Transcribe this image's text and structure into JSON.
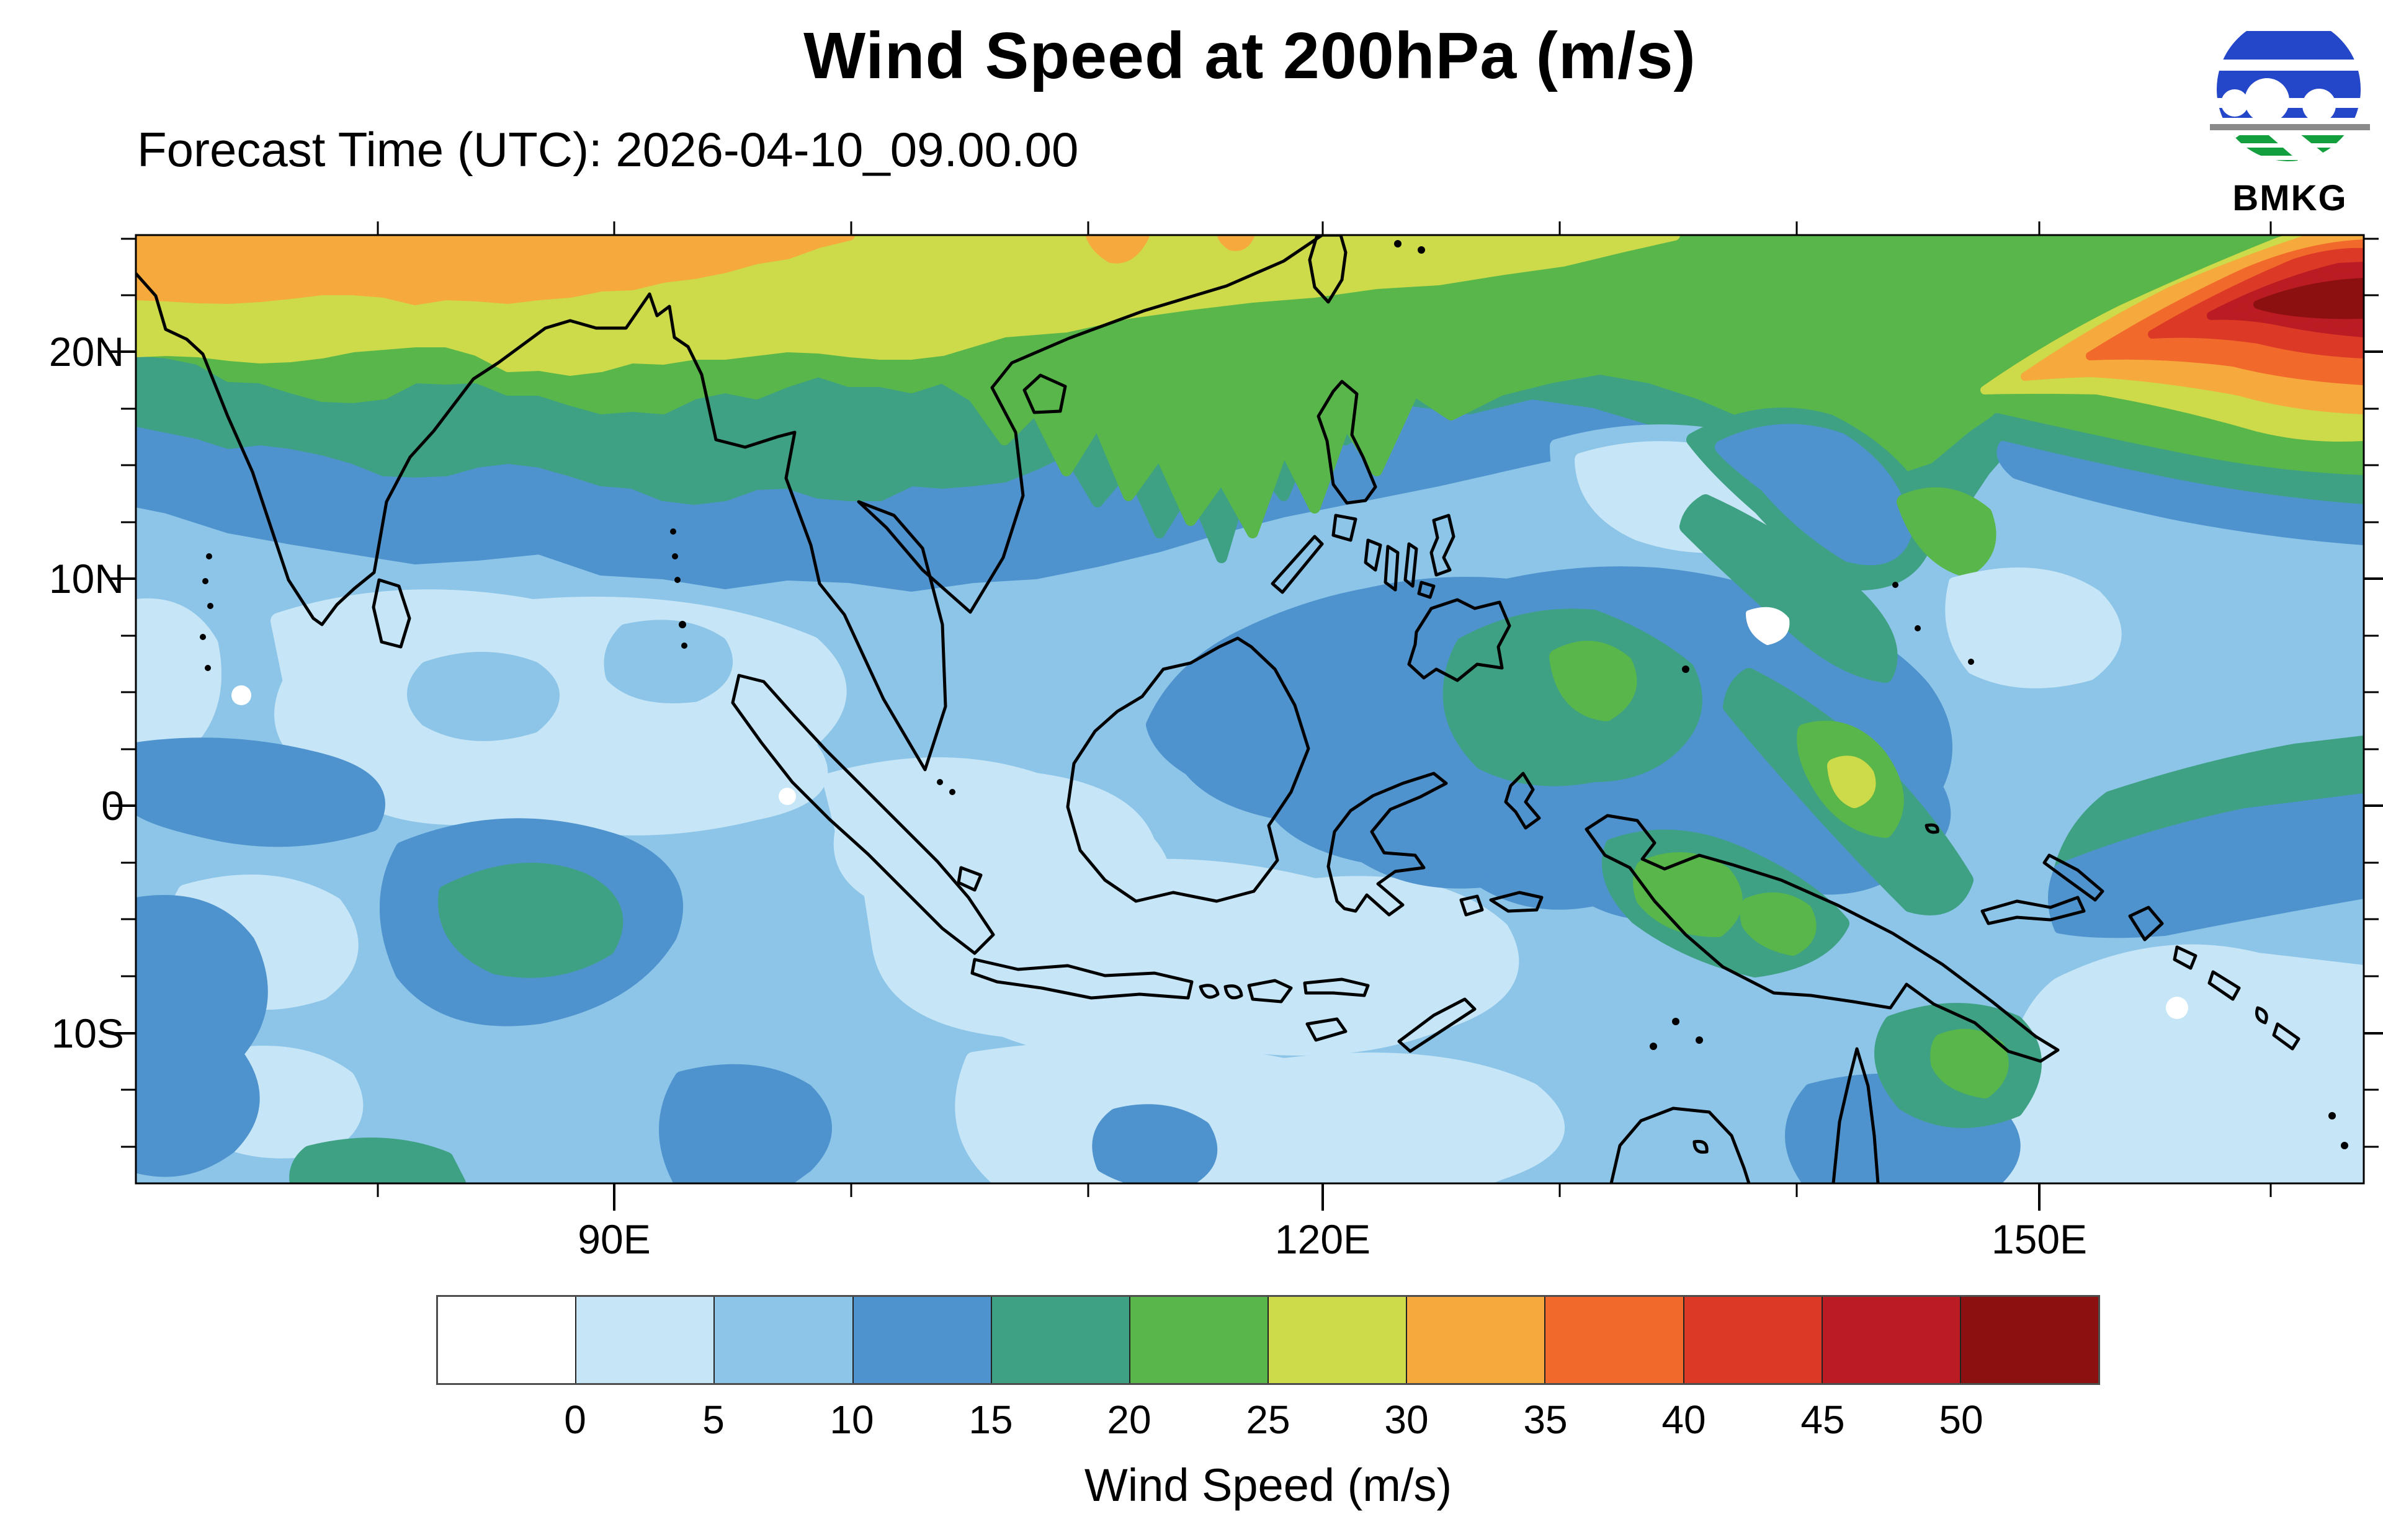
{
  "header": {
    "title": "Wind Speed at 200hPa (m/s)",
    "forecast_time": "Forecast Time (UTC): 2026-04-10_09.00.00"
  },
  "logo": {
    "text": "BMKG",
    "blue": "#2446c8",
    "green": "#149f3f",
    "gray": "#8a8a8a"
  },
  "map": {
    "lat_tick_labels": [
      "20N",
      "10N",
      "0",
      "10S"
    ],
    "lon_tick_labels": [
      "90E",
      "120E",
      "150E"
    ]
  },
  "colorbar": {
    "label": "Wind Speed (m/s)",
    "tick_labels": [
      "0",
      "5",
      "10",
      "15",
      "20",
      "25",
      "30",
      "35",
      "40",
      "45",
      "50"
    ],
    "colors": [
      "#ffffff",
      "#c6e5f6",
      "#8cc5e8",
      "#4e93ce",
      "#3fa184",
      "#58b64a",
      "#cdda49",
      "#f6a93c",
      "#f1692b",
      "#dc3a27",
      "#bb1c23",
      "#8c1010"
    ]
  },
  "chart_data": {
    "type": "heatmap",
    "title": "Wind Speed at 200hPa (m/s)",
    "subtitle": "Forecast Time (UTC): 2026-04-10_09.00.00",
    "variable": "Wind Speed (m/s)",
    "contour_levels_mps": [
      0,
      5,
      10,
      15,
      20,
      25,
      30,
      35,
      40,
      45,
      50
    ],
    "palette": [
      "#ffffff",
      "#c6e5f6",
      "#8cc5e8",
      "#4e93ce",
      "#3fa184",
      "#58b64a",
      "#cdda49",
      "#f6a93c",
      "#f1692b",
      "#dc3a27",
      "#bb1c23",
      "#8c1010"
    ],
    "x_tick_labels": [
      "90E",
      "120E",
      "150E"
    ],
    "y_tick_labels": [
      "20N",
      "10N",
      "0",
      "10S"
    ],
    "legend_position": "bottom",
    "notable_features": [
      "jet streak exceeding 50 m/s in the top-right corner (north of 20N, ~155-165E)",
      "30-35 m/s orange band along the top edge between ~70E and 100E",
      "15-25 m/s green/teal band across ~18-23N spanning the whole map",
      "10-15 m/s belt around the Philippines extending southeast, with 15-25 m/s streaks east of Mindanao",
      "mostly 0-10 m/s (pale blues) over Indonesia, the Bay of Bengal and the equatorial oceans",
      "15-25 m/s patch over New Guinea and the Coral Sea"
    ]
  }
}
